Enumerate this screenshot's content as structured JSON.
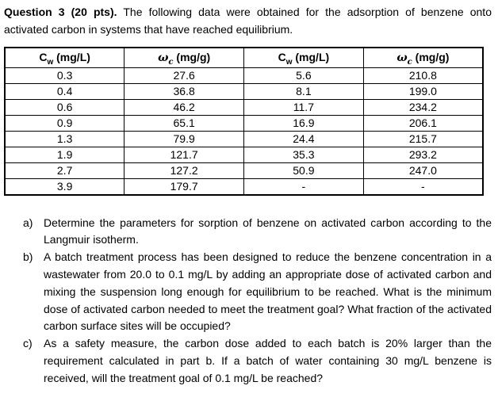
{
  "title": {
    "bold": "Question 3 (20 pts).",
    "rest": " The following data were obtained for the adsorption of benzene onto activated carbon in systems that have reached equilibrium."
  },
  "table": {
    "headers": {
      "cw_symbol": "C",
      "cw_sub": "w",
      "cw_unit": " (mg/L)",
      "wc_symbol": "ω",
      "wc_sub": "c",
      "wc_unit": " (mg/g)"
    },
    "rows": [
      [
        "0.3",
        "27.6",
        "5.6",
        "210.8"
      ],
      [
        "0.4",
        "36.8",
        "8.1",
        "199.0"
      ],
      [
        "0.6",
        "46.2",
        "11.7",
        "234.2"
      ],
      [
        "0.9",
        "65.1",
        "16.9",
        "206.1"
      ],
      [
        "1.3",
        "79.9",
        "24.4",
        "215.7"
      ],
      [
        "1.9",
        "121.7",
        "35.3",
        "293.2"
      ],
      [
        "2.7",
        "127.2",
        "50.9",
        "247.0"
      ],
      [
        "3.9",
        "179.7",
        "-",
        "-"
      ]
    ]
  },
  "questions": [
    {
      "label": "a)",
      "text": "Determine the parameters for sorption of benzene on activated carbon according to the Langmuir isotherm."
    },
    {
      "label": "b)",
      "text": "A batch treatment process has been designed to reduce the benzene concentration in a wastewater from 20.0 to 0.1 mg/L by adding an appropriate dose of activated carbon and mixing the suspension long enough for equilibrium to be reached. What is the minimum dose of activated carbon needed to meet the treatment goal? What fraction of the activated carbon surface sites will be occupied?"
    },
    {
      "label": "c)",
      "text": "As a safety measure, the carbon dose added to each batch is 20% larger than the requirement calculated in part b. If a batch of water containing 30 mg/L benzene is received, will the treatment goal of 0.1 mg/L be reached?"
    }
  ]
}
